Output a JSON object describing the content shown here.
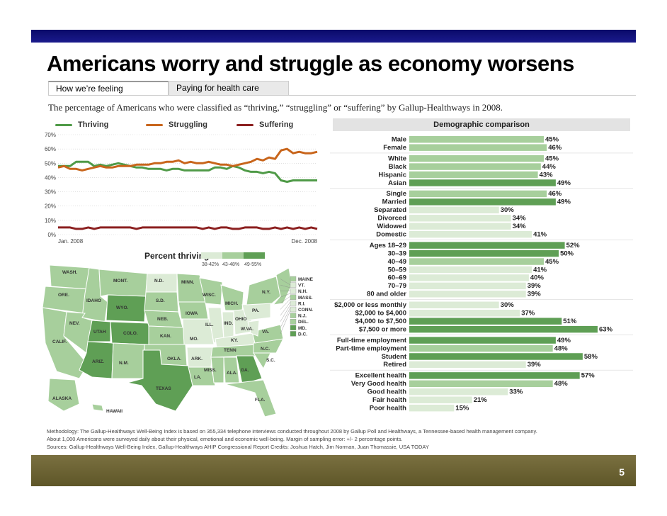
{
  "slide": {
    "title": "Americans worry and struggle as economy worsens",
    "page_number": "5",
    "colors": {
      "top_bar": "#14147a",
      "bottom_bar": "#6e6636"
    }
  },
  "tabs": [
    {
      "label": "How we’re feeling",
      "active": true
    },
    {
      "label": "Paying for health care",
      "active": false
    }
  ],
  "subtitle": "The percentage of Americans who were classified as “thriving,” “struggling” or “suffering” by Gallup-Healthways in 2008.",
  "footer": {
    "line1": "Methodology: The Gallup-Healthways Well-Being Index is based on 355,334 telephone interviews conducted throughout 2008 by Gallup Poll and Healthways, a Tennessee-based health management company.",
    "line2": "About 1,000 Americans were surveyed daily about their physical, emotional and economic well-being. Margin of sampling error: +/- 2 percentage points.",
    "line3": "Sources: Gallup-Healthways Well-Being Index, Gallup-Healthways AHIP Congressional Report   Credits: Joshua Hatch, Jim Norman, Juan Thomassie, USA TODAY"
  },
  "map": {
    "title": "Percent thriving",
    "legend": [
      {
        "label": "38-42%",
        "color": "#dcebd6"
      },
      {
        "label": "43-48%",
        "color": "#a7cf9c"
      },
      {
        "label": "49-55%",
        "color": "#5f9f55"
      }
    ],
    "states": [
      "WASH.",
      "ORE.",
      "CALIF.",
      "IDAHO",
      "NEV.",
      "UTAH",
      "ARIZ.",
      "MONT.",
      "WYO.",
      "COLO.",
      "N.M.",
      "N.D.",
      "S.D.",
      "NEB.",
      "KAN.",
      "OKLA.",
      "TEXAS",
      "MINN.",
      "IOWA",
      "MO.",
      "ARK.",
      "LA.",
      "WISC.",
      "ILL.",
      "MICH.",
      "IND.",
      "OHIO",
      "KY.",
      "TENN",
      "MISS.",
      "ALA.",
      "GA.",
      "FLA.",
      "S.C.",
      "N.C.",
      "VA.",
      "W.VA.",
      "PA.",
      "N.Y.",
      "ALASKA",
      "HAWAII"
    ],
    "northeast": [
      "MAINE",
      "VT.",
      "N.H.",
      "MASS.",
      "R.I.",
      "CONN.",
      "N.J.",
      "DEL.",
      "MD.",
      "D.C."
    ]
  },
  "chart_data": [
    {
      "type": "line",
      "title": "",
      "x_start_label": "Jan. 2008",
      "x_end_label": "Dec. 2008",
      "ylim": [
        0,
        70
      ],
      "yticks": [
        "0%",
        "10%",
        "20%",
        "30%",
        "40%",
        "50%",
        "60%",
        "70%"
      ],
      "grid": true,
      "series": [
        {
          "name": "Thriving",
          "color": "#4f9a47",
          "values": [
            48,
            48,
            48,
            51,
            51,
            51,
            48,
            49,
            48,
            49,
            50,
            49,
            48,
            47,
            47,
            46,
            46,
            46,
            45,
            46,
            46,
            45,
            45,
            45,
            45,
            45,
            47,
            47,
            46,
            48,
            47,
            45,
            44,
            44,
            43,
            44,
            43,
            38,
            37,
            38,
            38,
            38,
            38,
            38
          ]
        },
        {
          "name": "Struggling",
          "color": "#c8651b",
          "values": [
            47,
            48,
            46,
            46,
            45,
            46,
            47,
            48,
            47,
            47,
            48,
            48,
            48,
            49,
            49,
            49,
            50,
            50,
            51,
            51,
            52,
            50,
            51,
            50,
            50,
            51,
            50,
            49,
            49,
            48,
            49,
            50,
            51,
            53,
            52,
            54,
            53,
            59,
            60,
            57,
            58,
            57,
            57,
            58
          ]
        },
        {
          "name": "Suffering",
          "color": "#8b1f1f",
          "values": [
            5,
            5,
            5,
            4,
            4,
            5,
            4,
            5,
            5,
            5,
            5,
            5,
            5,
            4,
            5,
            5,
            5,
            5,
            5,
            5,
            5,
            5,
            5,
            5,
            4,
            5,
            4,
            5,
            5,
            4,
            4,
            5,
            5,
            5,
            4,
            4,
            5,
            4,
            5,
            4,
            5,
            4,
            5,
            4
          ]
        }
      ]
    },
    {
      "type": "bar",
      "title": "Demographic comparison",
      "xlim": [
        0,
        63
      ],
      "groups": [
        {
          "bars": [
            {
              "label": "Male",
              "value": 45
            },
            {
              "label": "Female",
              "value": 46
            }
          ]
        },
        {
          "bars": [
            {
              "label": "White",
              "value": 45
            },
            {
              "label": "Black",
              "value": 44
            },
            {
              "label": "Hispanic",
              "value": 43
            },
            {
              "label": "Asian",
              "value": 49
            }
          ]
        },
        {
          "bars": [
            {
              "label": "Single",
              "value": 46
            },
            {
              "label": "Married",
              "value": 49
            },
            {
              "label": "Separated",
              "value": 30
            },
            {
              "label": "Divorced",
              "value": 34
            },
            {
              "label": "Widowed",
              "value": 34
            },
            {
              "label": "Domestic",
              "value": 41
            }
          ]
        },
        {
          "bars": [
            {
              "label": "Ages 18–29",
              "value": 52
            },
            {
              "label": "30–39",
              "value": 50
            },
            {
              "label": "40–49",
              "value": 45
            },
            {
              "label": "50–59",
              "value": 41
            },
            {
              "label": "60–69",
              "value": 40
            },
            {
              "label": "70–79",
              "value": 39
            },
            {
              "label": "80 and older",
              "value": 39
            }
          ]
        },
        {
          "bars": [
            {
              "label": "$2,000 or less monthly",
              "value": 30
            },
            {
              "label": "$2,000 to $4,000",
              "value": 37
            },
            {
              "label": "$4,000 to $7,500",
              "value": 51
            },
            {
              "label": "$7,500 or more",
              "value": 63
            }
          ]
        },
        {
          "bars": [
            {
              "label": "Full-time employment",
              "value": 49
            },
            {
              "label": "Part-time employment",
              "value": 48
            },
            {
              "label": "Student",
              "value": 58
            },
            {
              "label": "Retired",
              "value": 39
            }
          ]
        },
        {
          "bars": [
            {
              "label": "Excellent health",
              "value": 57
            },
            {
              "label": "Very Good health",
              "value": 48
            },
            {
              "label": "Good health",
              "value": 33
            },
            {
              "label": "Fair health",
              "value": 21
            },
            {
              "label": "Poor health",
              "value": 15
            }
          ]
        }
      ],
      "colors": {
        "low": "#dcebd6",
        "mid": "#a7cf9c",
        "high": "#5f9f55"
      }
    }
  ]
}
